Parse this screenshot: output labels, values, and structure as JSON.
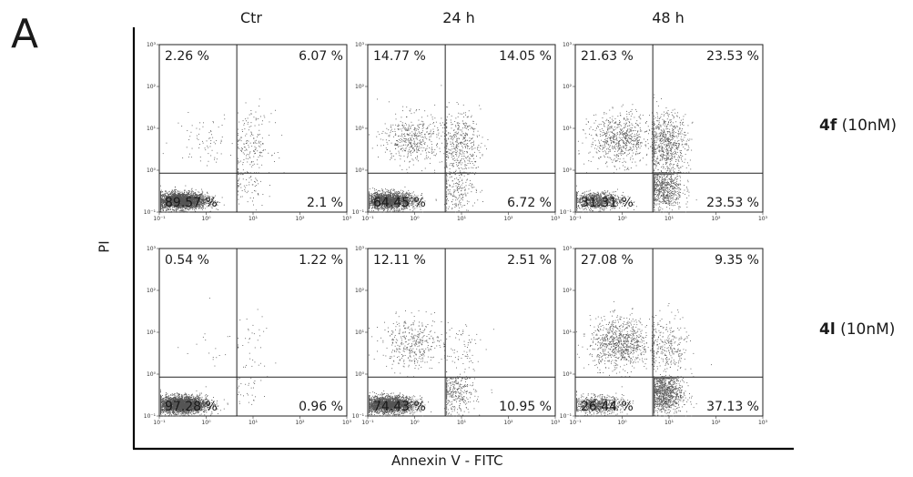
{
  "figure": {
    "panel_letter": "A",
    "x_axis_label": "Annexin V - FITC",
    "y_axis_label": "PI"
  },
  "columns": [
    "Ctr",
    "24 h",
    "48 h"
  ],
  "rows": [
    {
      "compound": "4f",
      "conc": "(10nM)"
    },
    {
      "compound": "4l",
      "conc": "(10nM)"
    }
  ],
  "chart_data": {
    "type": "scatter",
    "description_of_axes": {
      "x": {
        "label": "Annexin V - FITC",
        "scale": "log",
        "range": [
          0.1,
          1000
        ],
        "ticks": [
          "10⁻¹",
          "10⁰",
          "10¹",
          "10²",
          "10³"
        ]
      },
      "y": {
        "label": "PI",
        "scale": "log",
        "range": [
          0.1,
          1000
        ],
        "ticks": [
          "10⁻¹",
          "10⁰",
          "10¹",
          "10²",
          "10³"
        ]
      }
    },
    "quadrant_gate": {
      "annexin": 4.5,
      "pi": 0.85
    },
    "panels": [
      {
        "row": "4f (10nM)",
        "column": "Ctr",
        "quadrants": {
          "upper_left": "2.26 %",
          "upper_right": "6.07 %",
          "lower_left": "89.57 %",
          "lower_right": "2.1 %"
        },
        "lower_left": 89.57,
        "lower_right": 2.1,
        "upper_left": 2.26,
        "upper_right": 6.07
      },
      {
        "row": "4f (10nM)",
        "column": "24 h",
        "quadrants": {
          "upper_left": "14.77 %",
          "upper_right": "14.05 %",
          "lower_left": "64.45 %",
          "lower_right": "6.72 %"
        },
        "lower_left": 64.45,
        "lower_right": 6.72,
        "upper_left": 14.77,
        "upper_right": 14.05
      },
      {
        "row": "4f (10nM)",
        "column": "48 h",
        "quadrants": {
          "upper_left": "21.63 %",
          "upper_right": "23.53 %",
          "lower_left": "31.31 %",
          "lower_right": "23.53 %"
        },
        "lower_left": 31.31,
        "lower_right": 23.53,
        "upper_left": 21.63,
        "upper_right": 23.53
      },
      {
        "row": "4l (10nM)",
        "column": "Ctr",
        "quadrants": {
          "upper_left": "0.54 %",
          "upper_right": "1.22 %",
          "lower_left": "97.28 %",
          "lower_right": "0.96 %"
        },
        "lower_left": 97.28,
        "lower_right": 0.96,
        "upper_left": 0.54,
        "upper_right": 1.22
      },
      {
        "row": "4l (10nM)",
        "column": "24 h",
        "quadrants": {
          "upper_left": "12.11 %",
          "upper_right": "2.51 %",
          "lower_left": "74.43 %",
          "lower_right": "10.95 %"
        },
        "lower_left": 74.43,
        "lower_right": 10.95,
        "upper_left": 12.11,
        "upper_right": 2.51
      },
      {
        "row": "4l (10nM)",
        "column": "48 h",
        "quadrants": {
          "upper_left": "27.08 %",
          "upper_right": "9.35 %",
          "lower_left": "26.44 %",
          "lower_right": "37.13 %"
        },
        "lower_left": 26.44,
        "lower_right": 37.13,
        "upper_left": 27.08,
        "upper_right": 9.35
      }
    ],
    "point_color": "#555555"
  }
}
